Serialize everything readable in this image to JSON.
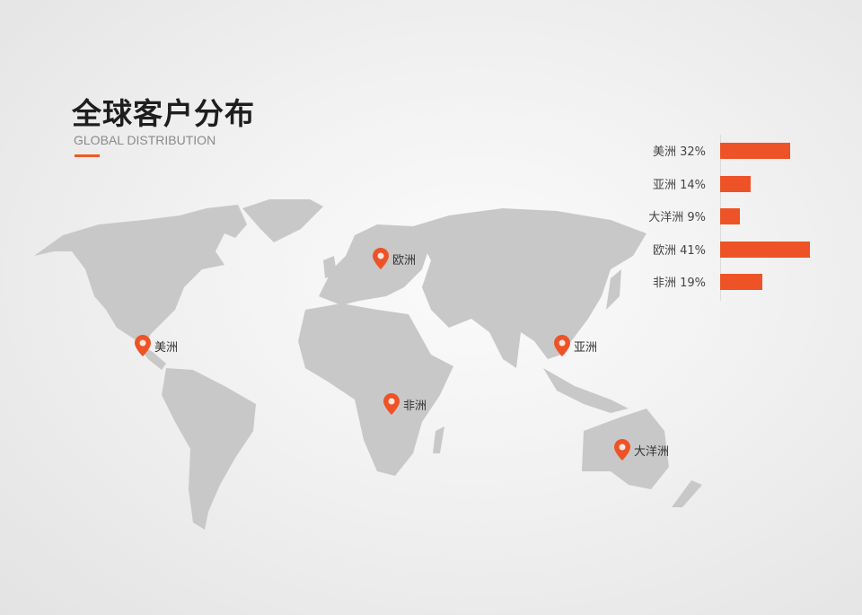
{
  "header": {
    "title": "全球客户分布",
    "subtitle": "GLOBAL DISTRIBUTION"
  },
  "colors": {
    "accent": "#ee5327",
    "land": "#c8c8c8"
  },
  "map_pins": [
    {
      "label": "欧洲",
      "icon": "map-pin-icon"
    },
    {
      "label": "美洲",
      "icon": "map-pin-icon"
    },
    {
      "label": "亚洲",
      "icon": "map-pin-icon"
    },
    {
      "label": "非洲",
      "icon": "map-pin-icon"
    },
    {
      "label": "大洋洲",
      "icon": "map-pin-icon"
    }
  ],
  "chart_data": {
    "type": "bar",
    "orientation": "horizontal",
    "categories": [
      "美洲",
      "亚洲",
      "大洋洲",
      "欧洲",
      "非洲"
    ],
    "values": [
      32,
      14,
      9,
      41,
      19
    ],
    "labels": [
      "美洲 32%",
      "亚洲 14%",
      "大洋洲 9%",
      "欧洲 41%",
      "非洲 19%"
    ],
    "unit": "%"
  }
}
